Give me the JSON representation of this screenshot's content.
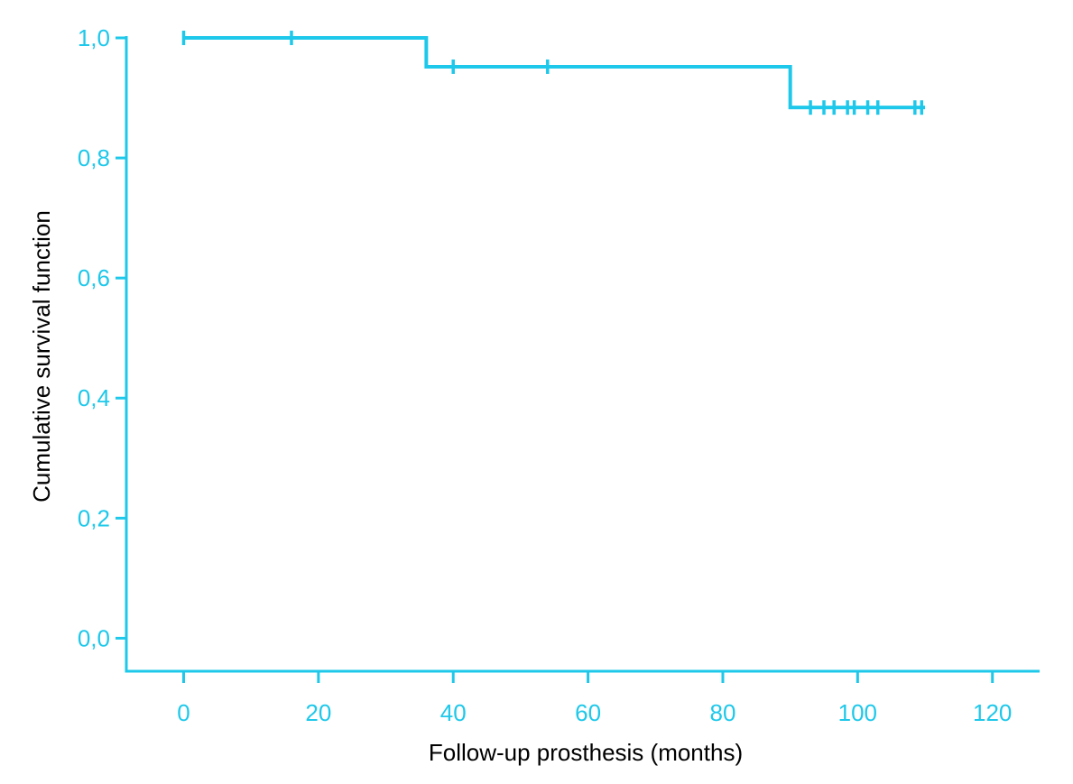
{
  "chart_data": {
    "type": "line",
    "step": true,
    "title": "",
    "xlabel": "Follow-up prosthesis (months)",
    "ylabel": "Cumulative survival function",
    "xlim": [
      -8.5,
      127
    ],
    "ylim": [
      -0.055,
      1.0
    ],
    "x_ticks": [
      0,
      20,
      40,
      60,
      80,
      100,
      120
    ],
    "x_tick_labels": [
      "0",
      "20",
      "40",
      "60",
      "80",
      "100",
      "120"
    ],
    "y_ticks": [
      0.0,
      0.2,
      0.4,
      0.6,
      0.8,
      1.0
    ],
    "y_tick_labels": [
      "0,0",
      "0,2",
      "0,4",
      "0,6",
      "0,8",
      "1,0"
    ],
    "grid": false,
    "colors": {
      "axis": "#1ec8ea",
      "line": "#1ec8ea",
      "axis_title": "#000000"
    },
    "series": [
      {
        "steps": [
          {
            "x": 0,
            "y": 1.0
          },
          {
            "x": 36,
            "y": 0.952
          },
          {
            "x": 90,
            "y": 0.884
          },
          {
            "x": 110,
            "y": 0.884
          }
        ],
        "censored": [
          {
            "x": 0,
            "y": 1.0
          },
          {
            "x": 16,
            "y": 1.0
          },
          {
            "x": 40,
            "y": 0.952
          },
          {
            "x": 54,
            "y": 0.952
          },
          {
            "x": 93,
            "y": 0.884
          },
          {
            "x": 95,
            "y": 0.884
          },
          {
            "x": 96.5,
            "y": 0.884
          },
          {
            "x": 98.5,
            "y": 0.884
          },
          {
            "x": 99.5,
            "y": 0.884
          },
          {
            "x": 101.5,
            "y": 0.884
          },
          {
            "x": 103,
            "y": 0.884
          },
          {
            "x": 108.5,
            "y": 0.884
          },
          {
            "x": 109.5,
            "y": 0.884
          }
        ]
      }
    ]
  }
}
